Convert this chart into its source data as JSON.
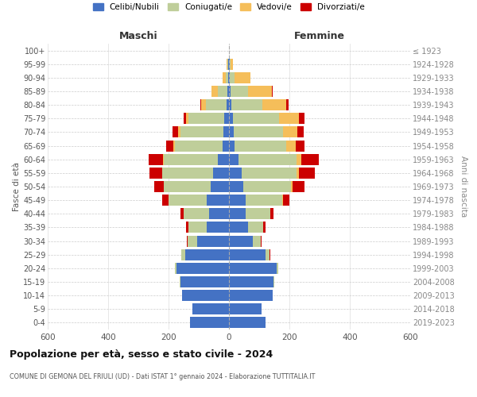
{
  "age_groups": [
    "0-4",
    "5-9",
    "10-14",
    "15-19",
    "20-24",
    "25-29",
    "30-34",
    "35-39",
    "40-44",
    "45-49",
    "50-54",
    "55-59",
    "60-64",
    "65-69",
    "70-74",
    "75-79",
    "80-84",
    "85-89",
    "90-94",
    "95-99",
    "100+"
  ],
  "birth_years": [
    "2019-2023",
    "2014-2018",
    "2009-2013",
    "2004-2008",
    "1999-2003",
    "1994-1998",
    "1989-1993",
    "1984-1988",
    "1979-1983",
    "1974-1978",
    "1969-1973",
    "1964-1968",
    "1959-1963",
    "1954-1958",
    "1949-1953",
    "1944-1948",
    "1939-1943",
    "1934-1938",
    "1929-1933",
    "1924-1928",
    "≤ 1923"
  ],
  "males": {
    "celibe": [
      130,
      120,
      155,
      160,
      175,
      145,
      105,
      75,
      65,
      75,
      60,
      52,
      38,
      22,
      18,
      15,
      8,
      5,
      3,
      2,
      0
    ],
    "coniugato": [
      0,
      0,
      0,
      2,
      5,
      12,
      32,
      58,
      85,
      125,
      155,
      168,
      178,
      158,
      142,
      118,
      68,
      32,
      8,
      3,
      0
    ],
    "vedovo": [
      0,
      0,
      0,
      0,
      0,
      0,
      0,
      0,
      0,
      0,
      2,
      2,
      3,
      5,
      8,
      10,
      15,
      20,
      10,
      3,
      0
    ],
    "divorziato": [
      0,
      0,
      0,
      0,
      0,
      2,
      3,
      8,
      10,
      20,
      30,
      42,
      48,
      22,
      18,
      8,
      5,
      0,
      0,
      0,
      0
    ]
  },
  "females": {
    "nubile": [
      120,
      108,
      145,
      148,
      158,
      122,
      78,
      62,
      55,
      55,
      48,
      42,
      32,
      18,
      15,
      12,
      8,
      5,
      3,
      2,
      0
    ],
    "coniugata": [
      0,
      0,
      0,
      2,
      5,
      12,
      28,
      52,
      82,
      122,
      158,
      182,
      192,
      172,
      165,
      155,
      102,
      58,
      15,
      3,
      0
    ],
    "vedova": [
      0,
      0,
      0,
      0,
      0,
      0,
      0,
      0,
      1,
      2,
      5,
      8,
      15,
      30,
      45,
      65,
      80,
      80,
      52,
      8,
      0
    ],
    "divorziata": [
      0,
      0,
      0,
      0,
      0,
      2,
      3,
      8,
      10,
      20,
      40,
      52,
      58,
      30,
      22,
      18,
      8,
      3,
      2,
      0,
      0
    ]
  },
  "colors": {
    "celibe": "#4472C4",
    "coniugato": "#BFCE9A",
    "vedovo": "#F5BE5A",
    "divorziato": "#CC0000"
  },
  "title": "Popolazione per età, sesso e stato civile - 2024",
  "subtitle": "COMUNE DI GEMONA DEL FRIULI (UD) - Dati ISTAT 1° gennaio 2024 - Elaborazione TUTTITALIA.IT",
  "xlabel_left": "Maschi",
  "xlabel_right": "Femmine",
  "ylabel_left": "Fasce di età",
  "ylabel_right": "Anni di nascita",
  "xlim": 600,
  "legend_labels": [
    "Celibi/Nubili",
    "Coniugati/e",
    "Vedovi/e",
    "Divorziati/e"
  ]
}
